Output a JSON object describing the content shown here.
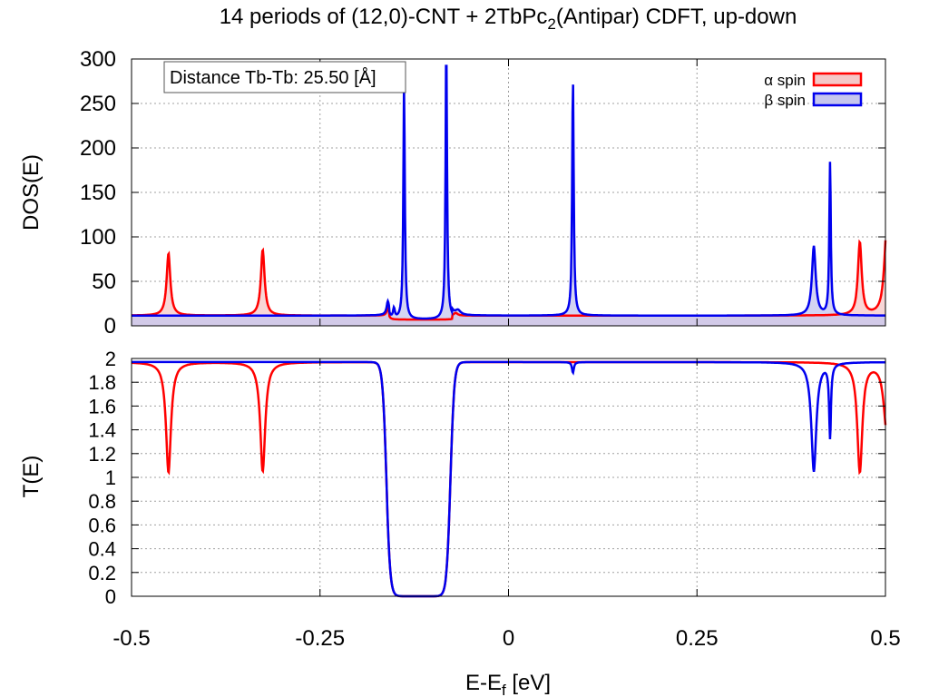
{
  "figure": {
    "title_main": "14 periods of (12,0)-CNT + 2TbPc",
    "title_sub": "2",
    "title_tail": "(Antipar) CDFT, up-down"
  },
  "chart_data": [
    {
      "type": "area",
      "panel": "top",
      "ylabel": "DOS(E)",
      "xlabel": "",
      "xlim": [
        -0.5,
        0.5
      ],
      "ylim": [
        0,
        300
      ],
      "x_ticks": [
        -0.5,
        -0.25,
        0,
        0.25,
        0.5
      ],
      "y_ticks": [
        0,
        50,
        100,
        150,
        200,
        250,
        300
      ],
      "y_tick_labels": [
        "0",
        "50",
        "100",
        "150",
        "200",
        "250",
        "300"
      ],
      "grid": true,
      "legend_position": "top-right",
      "annotation": "Distance Tb-Tb: 25.50 [Å]",
      "series": [
        {
          "name": "α spin",
          "color": "#ff0000",
          "fill": "#f5c8c8",
          "baseline": 11.5,
          "gap": [
            -0.158,
            -0.075,
            7
          ],
          "peaks": [
            {
              "x": -0.451,
              "h": 70,
              "w": 0.003
            },
            {
              "x": -0.326,
              "h": 74,
              "w": 0.003
            },
            {
              "x": -0.16,
              "h": 8,
              "w": 0.002
            },
            {
              "x": -0.07,
              "h": 3,
              "w": 0.003
            },
            {
              "x": 0.466,
              "h": 82,
              "w": 0.003
            },
            {
              "x": 0.502,
              "h": 105,
              "w": 0.004
            }
          ]
        },
        {
          "name": "β spin",
          "color": "#0000ee",
          "fill": "#c6c6ee",
          "baseline": 11.5,
          "gap": [
            -0.158,
            -0.075,
            7
          ],
          "peaks": [
            {
              "x": -0.16,
              "h": 15,
              "w": 0.002
            },
            {
              "x": -0.152,
              "h": 11,
              "w": 0.0015
            },
            {
              "x": -0.1385,
              "h": 265,
              "w": 0.0012
            },
            {
              "x": -0.0825,
              "h": 310,
              "w": 0.0012
            },
            {
              "x": -0.067,
              "h": 5,
              "w": 0.004
            },
            {
              "x": 0.0855,
              "h": 268,
              "w": 0.0012
            },
            {
              "x": 0.405,
              "h": 78,
              "w": 0.003
            },
            {
              "x": 0.4265,
              "h": 172,
              "w": 0.0012
            }
          ]
        }
      ]
    },
    {
      "type": "line",
      "panel": "bottom",
      "ylabel": "T(E)",
      "xlabel": "E-E",
      "xlabel_sub": "f",
      "xlabel_unit": " [eV]",
      "xlim": [
        -0.5,
        0.5
      ],
      "ylim": [
        0,
        2
      ],
      "x_ticks": [
        -0.5,
        -0.25,
        0,
        0.25,
        0.5
      ],
      "x_tick_labels": [
        "-0.5",
        "-0.25",
        "0",
        "0.25",
        "0.5"
      ],
      "y_ticks": [
        0,
        0.2,
        0.4,
        0.6,
        0.8,
        1,
        1.2,
        1.4,
        1.6,
        1.8,
        2
      ],
      "y_tick_labels": [
        "0",
        "0.2",
        "0.4",
        "0.6",
        "0.8",
        "1",
        "1.2",
        "1.4",
        "1.6",
        "1.8",
        "2"
      ],
      "grid": true,
      "series": [
        {
          "name": "α spin",
          "color": "#ff0000",
          "baseline": 1.97,
          "step_edges": [
            -0.162,
            -0.077
          ],
          "dips": [
            {
              "x": -0.451,
              "depth": 0.93,
              "w": 0.004
            },
            {
              "x": -0.326,
              "depth": 0.92,
              "w": 0.004
            },
            {
              "x": 0.466,
              "depth": 0.92,
              "w": 0.004
            },
            {
              "x": 0.502,
              "depth": 0.6,
              "w": 0.005
            }
          ]
        },
        {
          "name": "β spin",
          "color": "#0000ee",
          "baseline": 1.97,
          "step_edges": [
            -0.162,
            -0.077
          ],
          "dips": [
            {
              "x": 0.0855,
              "depth": 0.09,
              "w": 0.0015
            },
            {
              "x": 0.405,
              "depth": 0.92,
              "w": 0.004
            },
            {
              "x": 0.4265,
              "depth": 0.62,
              "w": 0.0015
            }
          ]
        }
      ]
    }
  ]
}
